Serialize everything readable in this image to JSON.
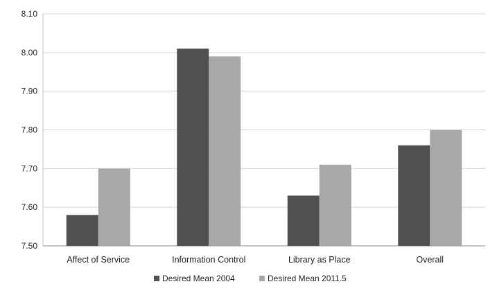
{
  "chart_data": {
    "type": "bar",
    "categories": [
      "Affect of Service",
      "Information Control",
      "Library as Place",
      "Overall"
    ],
    "series": [
      {
        "name": "Desired Mean 2004",
        "values": [
          7.58,
          8.01,
          7.63,
          7.76
        ],
        "color": "#505050"
      },
      {
        "name": "Desired Mean 2011.5",
        "values": [
          7.7,
          7.99,
          7.71,
          7.8
        ],
        "color": "#a8a8a8"
      }
    ],
    "ylim": [
      7.5,
      8.1
    ],
    "yticks": [
      "7.50",
      "7.60",
      "7.70",
      "7.80",
      "7.90",
      "8.00",
      "8.10"
    ],
    "grid": true,
    "legend_position": "bottom"
  }
}
